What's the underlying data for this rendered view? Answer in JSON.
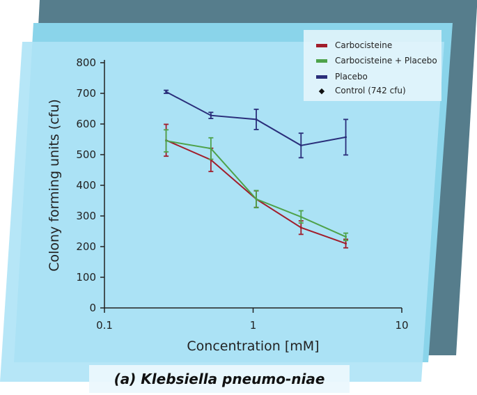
{
  "chart_data": {
    "type": "line",
    "title": "",
    "xlabel": "Concentration [mM]",
    "ylabel": "Colony forming units (cfu)",
    "x_scale": "log",
    "xlim": [
      0.1,
      10
    ],
    "ylim": [
      0,
      800
    ],
    "x_ticks": [
      "0.1",
      "1",
      "10"
    ],
    "y_ticks": [
      "0",
      "100",
      "200",
      "300",
      "400",
      "500",
      "600",
      "700",
      "800"
    ],
    "legend_position": "top-right",
    "series": [
      {
        "name": "Carbocisteine",
        "color": "#a11d2b",
        "x": [
          0.26,
          0.52,
          1.05,
          2.1,
          4.2
        ],
        "y": [
          547,
          483,
          355,
          262,
          210
        ],
        "err": [
          52,
          38,
          27,
          22,
          14
        ]
      },
      {
        "name": "Carbocisteine + Placebo",
        "color": "#4ea24a",
        "x": [
          0.26,
          0.52,
          1.05,
          2.1,
          4.2
        ],
        "y": [
          545,
          520,
          355,
          297,
          232
        ],
        "err": [
          36,
          35,
          28,
          20,
          12
        ]
      },
      {
        "name": "Placebo",
        "color": "#2a2e7a",
        "x": [
          0.26,
          0.52,
          1.05,
          2.1,
          4.2
        ],
        "y": [
          705,
          628,
          615,
          530,
          557
        ],
        "err": [
          5,
          10,
          33,
          40,
          58
        ]
      }
    ],
    "control": {
      "label": "Control (742 cfu)",
      "value": 742
    }
  },
  "caption": "(a) Klebsiella pneumo-niae"
}
